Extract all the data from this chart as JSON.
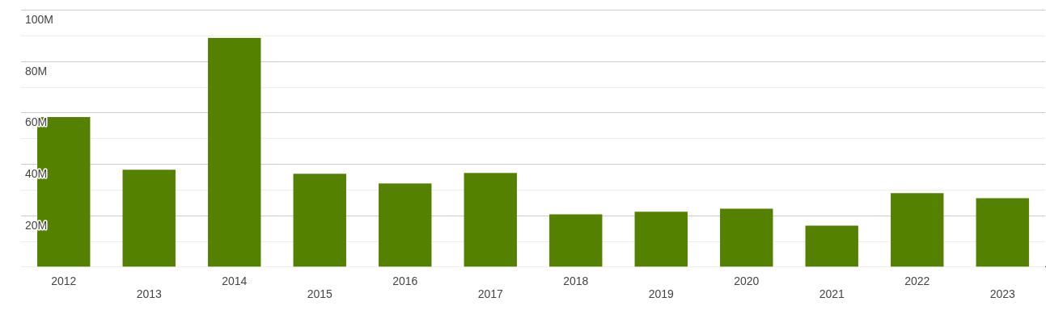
{
  "chart_data": {
    "type": "bar",
    "categories": [
      "2012",
      "2013",
      "2014",
      "2015",
      "2016",
      "2017",
      "2018",
      "2019",
      "2020",
      "2021",
      "2022",
      "2023"
    ],
    "values": [
      58.2,
      37.7,
      89.0,
      36.2,
      32.4,
      36.5,
      20.4,
      21.4,
      22.6,
      16.0,
      28.6,
      26.7
    ],
    "color": "#548200",
    "ylim": [
      0,
      100
    ],
    "yticks": [
      {
        "value": 0,
        "label": null
      },
      {
        "value": 10,
        "label": null
      },
      {
        "value": 20,
        "label": "20M"
      },
      {
        "value": 30,
        "label": null
      },
      {
        "value": 40,
        "label": "40M"
      },
      {
        "value": 50,
        "label": null
      },
      {
        "value": 60,
        "label": "60M"
      },
      {
        "value": 70,
        "label": null
      },
      {
        "value": 80,
        "label": "80M"
      },
      {
        "value": 90,
        "label": null
      },
      {
        "value": 100,
        "label": "100M"
      }
    ],
    "grid": "y"
  }
}
